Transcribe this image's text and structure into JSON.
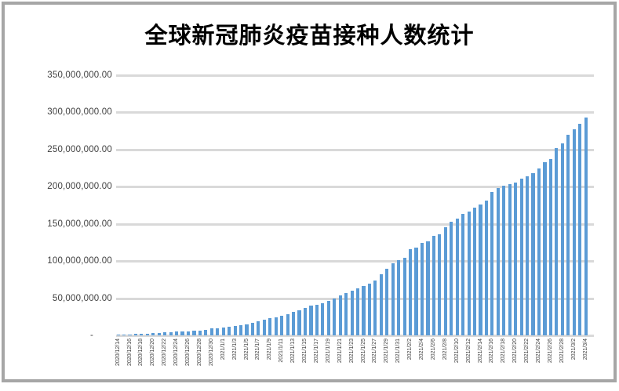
{
  "frame": {
    "border_color": "#A6A6A6"
  },
  "chart_data": {
    "type": "bar",
    "title": "全球新冠肺炎疫苗接种人数统计",
    "xlabel": "",
    "ylabel": "",
    "ylim": [
      0,
      350000000
    ],
    "grid": "horizontal",
    "legend": "none",
    "bar_color": "#5B9BD5",
    "gridline_color": "#D9D9D9",
    "axis_label_color": "#404040",
    "ytick_labels": [
      "350,000,000.00",
      "300,000,000.00",
      "250,000,000.00",
      "200,000,000.00",
      "150,000,000.00",
      "100,000,000.00",
      "50,000,000.00",
      "-"
    ],
    "x_label_every": 2,
    "x": [
      "2020/12/14",
      "2020/12/15",
      "2020/12/16",
      "2020/12/17",
      "2020/12/18",
      "2020/12/19",
      "2020/12/20",
      "2020/12/21",
      "2020/12/22",
      "2020/12/23",
      "2020/12/24",
      "2020/12/25",
      "2020/12/26",
      "2020/12/27",
      "2020/12/28",
      "2020/12/29",
      "2020/12/30",
      "2020/12/31",
      "2021/1/1",
      "2021/1/2",
      "2021/1/3",
      "2021/1/4",
      "2021/1/5",
      "2021/1/6",
      "2021/1/7",
      "2021/1/8",
      "2021/1/9",
      "2021/1/10",
      "2021/1/11",
      "2021/1/12",
      "2021/1/13",
      "2021/1/14",
      "2021/1/15",
      "2021/1/16",
      "2021/1/17",
      "2021/1/18",
      "2021/1/19",
      "2021/1/20",
      "2021/1/21",
      "2021/1/22",
      "2021/1/23",
      "2021/1/24",
      "2021/1/25",
      "2021/1/26",
      "2021/1/27",
      "2021/1/28",
      "2021/1/29",
      "2021/1/30",
      "2021/1/31",
      "2021/2/1",
      "2021/2/2",
      "2021/2/3",
      "2021/2/4",
      "2021/2/5",
      "2021/2/6",
      "2021/2/7",
      "2021/2/8",
      "2021/2/9",
      "2021/2/10",
      "2021/2/11",
      "2021/2/12",
      "2021/2/13",
      "2021/2/14",
      "2021/2/15",
      "2021/2/16",
      "2021/2/17",
      "2021/2/18",
      "2021/2/19",
      "2021/2/20",
      "2021/2/21",
      "2021/2/22",
      "2021/2/23",
      "2021/2/24",
      "2021/2/25",
      "2021/2/26",
      "2021/2/27",
      "2021/2/28",
      "2021/3/1",
      "2021/3/2",
      "2021/3/3",
      "2021/3/4"
    ],
    "values": [
      800000,
      1100000,
      1500000,
      1900000,
      2300000,
      2600000,
      2900000,
      3300000,
      3800000,
      4300000,
      4800000,
      5100000,
      5400000,
      5900000,
      6500000,
      7600000,
      9000000,
      10000000,
      10800000,
      11600000,
      12400000,
      13600000,
      15000000,
      17000000,
      19200000,
      21000000,
      22800000,
      24000000,
      26200000,
      28700000,
      31500000,
      34000000,
      36800000,
      39600000,
      41500000,
      43500000,
      46000000,
      50000000,
      53500000,
      57000000,
      60500000,
      63000000,
      66000000,
      70000000,
      74000000,
      82000000,
      90000000,
      97000000,
      101000000,
      104500000,
      116000000,
      118500000,
      124500000,
      126500000,
      133500000,
      136000000,
      145500000,
      153000000,
      157000000,
      163000000,
      166500000,
      172000000,
      176500000,
      181500000,
      193000000,
      198000000,
      201000000,
      203000000,
      205500000,
      210500000,
      214000000,
      218000000,
      224500000,
      233500000,
      237000000,
      252500000,
      258000000,
      270000000,
      277500000,
      284500000,
      293000000
    ]
  }
}
